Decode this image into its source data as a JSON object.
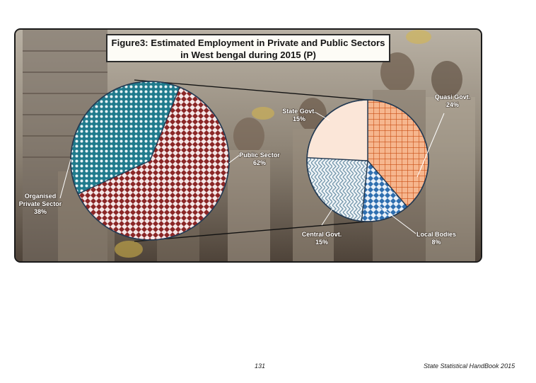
{
  "chart_data": [
    {
      "type": "pie",
      "title": "Figure3: Estimated Employment in Private and Public Sectors in West bengal during 2015 (P)",
      "slices": [
        {
          "key": "public",
          "label": "Public Sector",
          "value": 62,
          "value_label": "62%",
          "color": "#8b2626"
        },
        {
          "key": "organised",
          "label": "Organised Private Sector",
          "label_lines": [
            "Organised",
            "Private Sector"
          ],
          "value": 38,
          "value_label": "38%",
          "color": "#1f7a8c"
        }
      ]
    },
    {
      "type": "pie",
      "title": "",
      "slices": [
        {
          "key": "quasi",
          "label": "Quasi Govt.",
          "value": 24,
          "value_label": "24%",
          "color": "#e8743b"
        },
        {
          "key": "local",
          "label": "Local Bodies",
          "value": 8,
          "value_label": "8%",
          "color": "#2f6fb0"
        },
        {
          "key": "central",
          "label": "Central Govt.",
          "value": 15,
          "value_label": "15%",
          "color": "#6a8fa6"
        },
        {
          "key": "state",
          "label": "State Govt.",
          "value": 15,
          "value_label": "15%",
          "color": "#fbe6d8"
        }
      ]
    }
  ],
  "footer": {
    "page_number": "131",
    "publication": "State Statistical HandBook 2015"
  }
}
